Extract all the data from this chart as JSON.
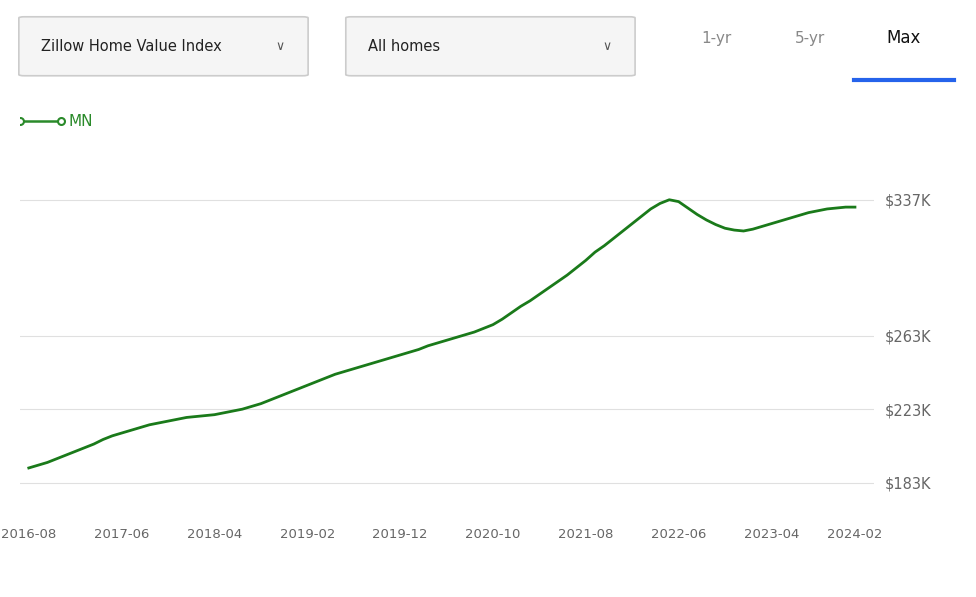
{
  "x_labels": [
    "2016-08",
    "2017-06",
    "2018-04",
    "2019-02",
    "2019-12",
    "2020-10",
    "2021-08",
    "2022-06",
    "2023-04",
    "2024-02"
  ],
  "y_ticks": [
    183000,
    223000,
    263000,
    337000
  ],
  "y_tick_labels": [
    "$183K",
    "$223K",
    "$263K",
    "$337K"
  ],
  "ylim": [
    163000,
    358000
  ],
  "line_color": "#1a7a1a",
  "line_width": 2.0,
  "background_color": "#ffffff",
  "grid_color": "#e0e0e0",
  "legend_label": "MN",
  "legend_color": "#2a8a2a",
  "dropdown1_text": "Zillow Home Value Index",
  "dropdown2_text": "All homes",
  "btn_1yr": "1-yr",
  "btn_5yr": "5-yr",
  "btn_max": "Max",
  "max_underline_color": "#2563eb",
  "x_data": [
    0,
    1,
    2,
    3,
    4,
    5,
    6,
    7,
    8,
    9,
    10,
    11,
    12,
    13,
    14,
    15,
    16,
    17,
    18,
    19,
    20,
    21,
    22,
    23,
    24,
    25,
    26,
    27,
    28,
    29,
    30,
    31,
    32,
    33,
    34,
    35,
    36,
    37,
    38,
    39,
    40,
    41,
    42,
    43,
    44,
    45,
    46,
    47,
    48,
    49,
    50,
    51,
    52,
    53,
    54,
    55,
    56,
    57,
    58,
    59,
    60,
    61,
    62,
    63,
    64,
    65,
    66,
    67,
    68,
    69,
    70,
    71,
    72,
    73,
    74,
    75,
    76,
    77,
    78,
    79,
    80,
    81,
    82,
    83,
    84,
    85,
    86,
    87,
    88,
    89
  ],
  "y_data": [
    191000,
    192500,
    194000,
    196000,
    198000,
    200000,
    202000,
    204000,
    206500,
    208500,
    210000,
    211500,
    213000,
    214500,
    215500,
    216500,
    217500,
    218500,
    219000,
    219500,
    220000,
    221000,
    222000,
    223000,
    224500,
    226000,
    228000,
    230000,
    232000,
    234000,
    236000,
    238000,
    240000,
    242000,
    243500,
    245000,
    246500,
    248000,
    249500,
    251000,
    252500,
    254000,
    255500,
    257500,
    259000,
    260500,
    262000,
    263500,
    265000,
    267000,
    269000,
    272000,
    275500,
    279000,
    282000,
    285500,
    289000,
    292500,
    296000,
    300000,
    304000,
    308500,
    312000,
    316000,
    320000,
    324000,
    328000,
    332000,
    335000,
    337000,
    336000,
    332500,
    329000,
    326000,
    323500,
    321500,
    320500,
    320000,
    321000,
    322500,
    324000,
    325500,
    327000,
    328500,
    330000,
    331000,
    332000,
    332500,
    333000,
    333000
  ]
}
